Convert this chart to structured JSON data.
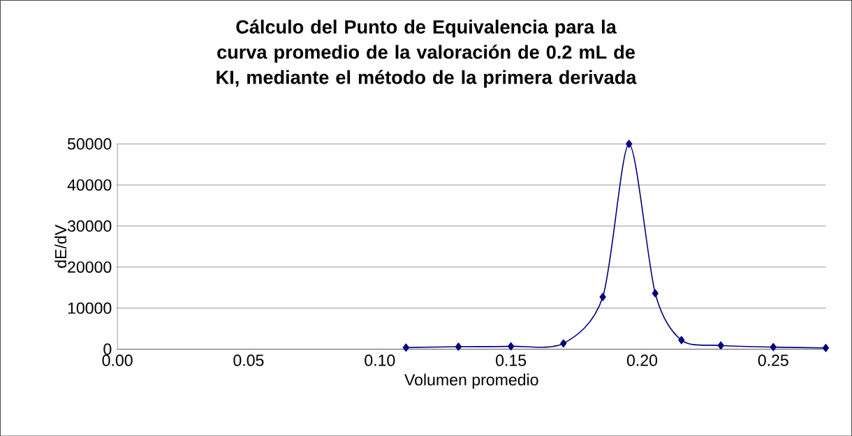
{
  "chart_data": {
    "type": "line",
    "title": "Cálculo del Punto de Equivalencia para la curva promedio de la valoración de 0.2 mL de KI, mediante el método de la primera derivada",
    "xlabel": "Volumen promedio",
    "ylabel": "dE/dV",
    "x": [
      0.11,
      0.13,
      0.15,
      0.17,
      0.185,
      0.195,
      0.205,
      0.215,
      0.23,
      0.25,
      0.27
    ],
    "series": [
      {
        "color": "#000080",
        "values": [
          400,
          600,
          700,
          1400,
          12700,
          50000,
          13600,
          2200,
          900,
          500,
          300
        ]
      }
    ],
    "xlim": [
      0,
      0.27
    ],
    "ylim": [
      0,
      50000
    ],
    "xticks": [
      {
        "value": 0,
        "label": "0.00"
      },
      {
        "value": 0.05,
        "label": "0.05"
      },
      {
        "value": 0.1,
        "label": "0.10"
      },
      {
        "value": 0.15,
        "label": "0.15"
      },
      {
        "value": 0.2,
        "label": "0.20"
      },
      {
        "value": 0.25,
        "label": "0.25"
      }
    ],
    "yticks": [
      0,
      10000,
      20000,
      30000,
      40000,
      50000
    ],
    "grid": "y",
    "marker": "diamond",
    "line_style": "solid"
  }
}
